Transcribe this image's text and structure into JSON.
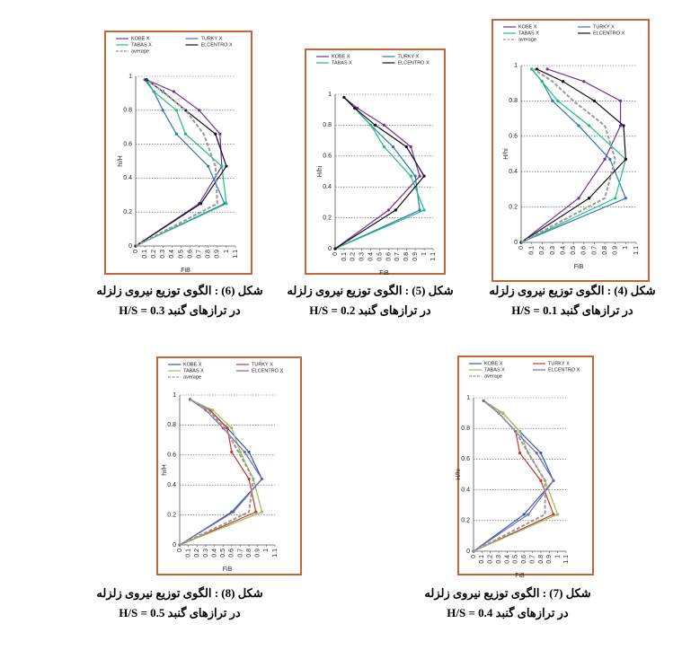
{
  "chart_data": [
    {
      "type": "line",
      "caption": [
        "شکل (6) : الگوی توزیع نیروی زلزله",
        "در ترازهای گنبد H/S = 0.3"
      ],
      "x_label": "FiB",
      "y_label": "hi/H",
      "y": [
        0,
        0.25,
        0.47,
        0.66,
        0.8,
        0.91,
        0.98
      ],
      "xlim": [
        0,
        1.1
      ],
      "ylim": [
        0,
        1
      ],
      "xticks": [
        0,
        0.1,
        0.2,
        0.3,
        0.4,
        0.5,
        0.6,
        0.7,
        0.8,
        0.9,
        1,
        1.1
      ],
      "yticks": [
        0,
        0.2,
        0.4,
        0.6,
        0.8,
        1
      ],
      "grid": true,
      "series": [
        {
          "name": "KOBE X",
          "color": "#7030a0",
          "values": [
            0,
            0.7,
            0.95,
            0.93,
            0.7,
            0.42,
            0.12
          ]
        },
        {
          "name": "TURKY X",
          "color": "#2e75b6",
          "values": [
            0,
            0.98,
            0.8,
            0.45,
            0.3,
            0.2,
            0.1
          ]
        },
        {
          "name": "TABAS X",
          "color": "#1fbf7a",
          "values": [
            0,
            1.0,
            0.95,
            0.55,
            0.45,
            0.2,
            0.12
          ]
        },
        {
          "name": "ELCENTRO X",
          "color": "#111111",
          "values": [
            0,
            0.72,
            1.0,
            0.88,
            0.55,
            0.3,
            0.12
          ]
        },
        {
          "name": "average",
          "color": "#999999",
          "dashed": true,
          "values": [
            0,
            0.9,
            0.88,
            0.75,
            0.55,
            0.3,
            0.12
          ]
        }
      ]
    },
    {
      "type": "line",
      "caption": [
        "شکل (5) : الگوی توزیع نیروی زلزله",
        "در ترازهای گنبد H/S = 0.2"
      ],
      "x_label": "FiB",
      "y_label": "H/hi",
      "y": [
        0,
        0.25,
        0.47,
        0.66,
        0.8,
        0.91,
        0.98
      ],
      "xlim": [
        0,
        1.1
      ],
      "ylim": [
        0,
        1
      ],
      "xticks": [
        0,
        0.1,
        0.2,
        0.3,
        0.4,
        0.5,
        0.6,
        0.7,
        0.8,
        0.9,
        1,
        1.1
      ],
      "yticks": [
        0,
        0.2,
        0.4,
        0.6,
        0.8,
        1
      ],
      "grid": true,
      "series": [
        {
          "name": "KOBE X",
          "color": "#7030a0",
          "values": [
            0,
            0.6,
            0.95,
            0.85,
            0.55,
            0.25,
            0.1
          ]
        },
        {
          "name": "TURKY X",
          "color": "#2e75b6",
          "values": [
            0,
            0.95,
            0.9,
            0.65,
            0.4,
            0.22,
            0.1
          ]
        },
        {
          "name": "TABAS X",
          "color": "#1fbf7a",
          "values": [
            0,
            1.0,
            0.85,
            0.55,
            0.4,
            0.22,
            0.1
          ]
        },
        {
          "name": "ELCENTRO X",
          "color": "#111111",
          "values": [
            0,
            0.68,
            1.0,
            0.8,
            0.45,
            0.22,
            0.1
          ]
        }
      ]
    },
    {
      "type": "line",
      "caption": [
        "شکل (4) : الگوی توزیع نیروی زلزله",
        "در ترازهای گنبد H/S = 0.1"
      ],
      "x_label": "FiB",
      "y_label": "H/hi",
      "y": [
        0,
        0.25,
        0.47,
        0.66,
        0.8,
        0.91,
        0.98
      ],
      "xlim": [
        0,
        1.1
      ],
      "ylim": [
        0,
        1
      ],
      "xticks": [
        0,
        0.1,
        0.2,
        0.3,
        0.4,
        0.5,
        0.6,
        0.7,
        0.8,
        0.9,
        1,
        1.1
      ],
      "yticks": [
        0,
        0.2,
        0.4,
        0.6,
        0.8,
        1
      ],
      "grid": true,
      "series": [
        {
          "name": "KOBE X",
          "color": "#7030a0",
          "values": [
            0,
            0.55,
            0.8,
            0.95,
            0.95,
            0.6,
            0.25
          ]
        },
        {
          "name": "TURKY X",
          "color": "#2e75b6",
          "values": [
            0,
            1.0,
            0.85,
            0.55,
            0.3,
            0.2,
            0.1
          ]
        },
        {
          "name": "TABAS X",
          "color": "#1fbf7a",
          "values": [
            0,
            0.9,
            1.0,
            0.65,
            0.35,
            0.2,
            0.1
          ]
        },
        {
          "name": "ELCENTRO X",
          "color": "#111111",
          "values": [
            0,
            0.65,
            1.0,
            0.98,
            0.7,
            0.4,
            0.15
          ]
        },
        {
          "name": "average",
          "color": "#999999",
          "dashed": true,
          "values": [
            0,
            0.8,
            0.9,
            0.8,
            0.5,
            0.3,
            0.12
          ]
        }
      ]
    },
    {
      "type": "line",
      "caption": [
        "شکل (8) : الگوی توزیع نیروی زلزله",
        "در ترازهای گنبد H/S = 0.5"
      ],
      "x_label": "FiB",
      "y_label": "hi/H",
      "y": [
        0,
        0.22,
        0.44,
        0.62,
        0.78,
        0.9,
        0.97
      ],
      "xlim": [
        0,
        1.1
      ],
      "ylim": [
        0,
        1
      ],
      "xticks": [
        0,
        0.1,
        0.2,
        0.3,
        0.4,
        0.5,
        0.6,
        0.7,
        0.8,
        0.9,
        1,
        1.1
      ],
      "yticks": [
        0,
        0.2,
        0.4,
        0.6,
        0.8,
        1
      ],
      "grid": true,
      "series": [
        {
          "name": "KOBE X",
          "color": "#1f5fbf",
          "values": [
            0,
            0.6,
            0.95,
            0.8,
            0.55,
            0.35,
            0.12
          ]
        },
        {
          "name": "TURKY X",
          "color": "#c0392b",
          "values": [
            0,
            0.88,
            0.8,
            0.6,
            0.55,
            0.35,
            0.12
          ]
        },
        {
          "name": "TABAS X",
          "color": "#9bbb59",
          "values": [
            0,
            0.95,
            0.85,
            0.7,
            0.6,
            0.38,
            0.12
          ]
        },
        {
          "name": "ELCENTRO X",
          "color": "#8064a2",
          "values": [
            0,
            0.62,
            0.95,
            0.75,
            0.5,
            0.3,
            0.12
          ]
        },
        {
          "name": "average",
          "color": "#999999",
          "dashed": true,
          "values": [
            0,
            0.8,
            0.85,
            0.68,
            0.52,
            0.33,
            0.12
          ]
        }
      ]
    },
    {
      "type": "line",
      "caption": [
        "شکل (7) : الگوی توزیع نیروی زلزله",
        "در ترازهای گنبد H/S = 0.4"
      ],
      "x_label": "FiB",
      "y_label": "H/hi",
      "y": [
        0,
        0.24,
        0.46,
        0.64,
        0.78,
        0.9,
        0.98
      ],
      "xlim": [
        0,
        1.1
      ],
      "ylim": [
        0,
        1
      ],
      "xticks": [
        0,
        0.1,
        0.2,
        0.3,
        0.4,
        0.5,
        0.6,
        0.7,
        0.8,
        0.9,
        1,
        1.1
      ],
      "yticks": [
        0,
        0.2,
        0.4,
        0.6,
        0.8,
        1
      ],
      "grid": true,
      "series": [
        {
          "name": "KOBE X",
          "color": "#1f5fbf",
          "values": [
            0,
            0.6,
            0.95,
            0.8,
            0.55,
            0.35,
            0.12
          ]
        },
        {
          "name": "TURKY X",
          "color": "#c0392b",
          "values": [
            0,
            0.95,
            0.8,
            0.55,
            0.5,
            0.3,
            0.12
          ]
        },
        {
          "name": "TABAS X",
          "color": "#9bbb59",
          "values": [
            0,
            1.0,
            0.85,
            0.65,
            0.55,
            0.35,
            0.12
          ]
        },
        {
          "name": "ELCENTRO X",
          "color": "#8064a2",
          "values": [
            0,
            0.65,
            0.95,
            0.75,
            0.5,
            0.3,
            0.12
          ]
        },
        {
          "name": "average",
          "color": "#999999",
          "dashed": true,
          "values": [
            0,
            0.85,
            0.85,
            0.65,
            0.5,
            0.3,
            0.12
          ]
        }
      ]
    }
  ]
}
